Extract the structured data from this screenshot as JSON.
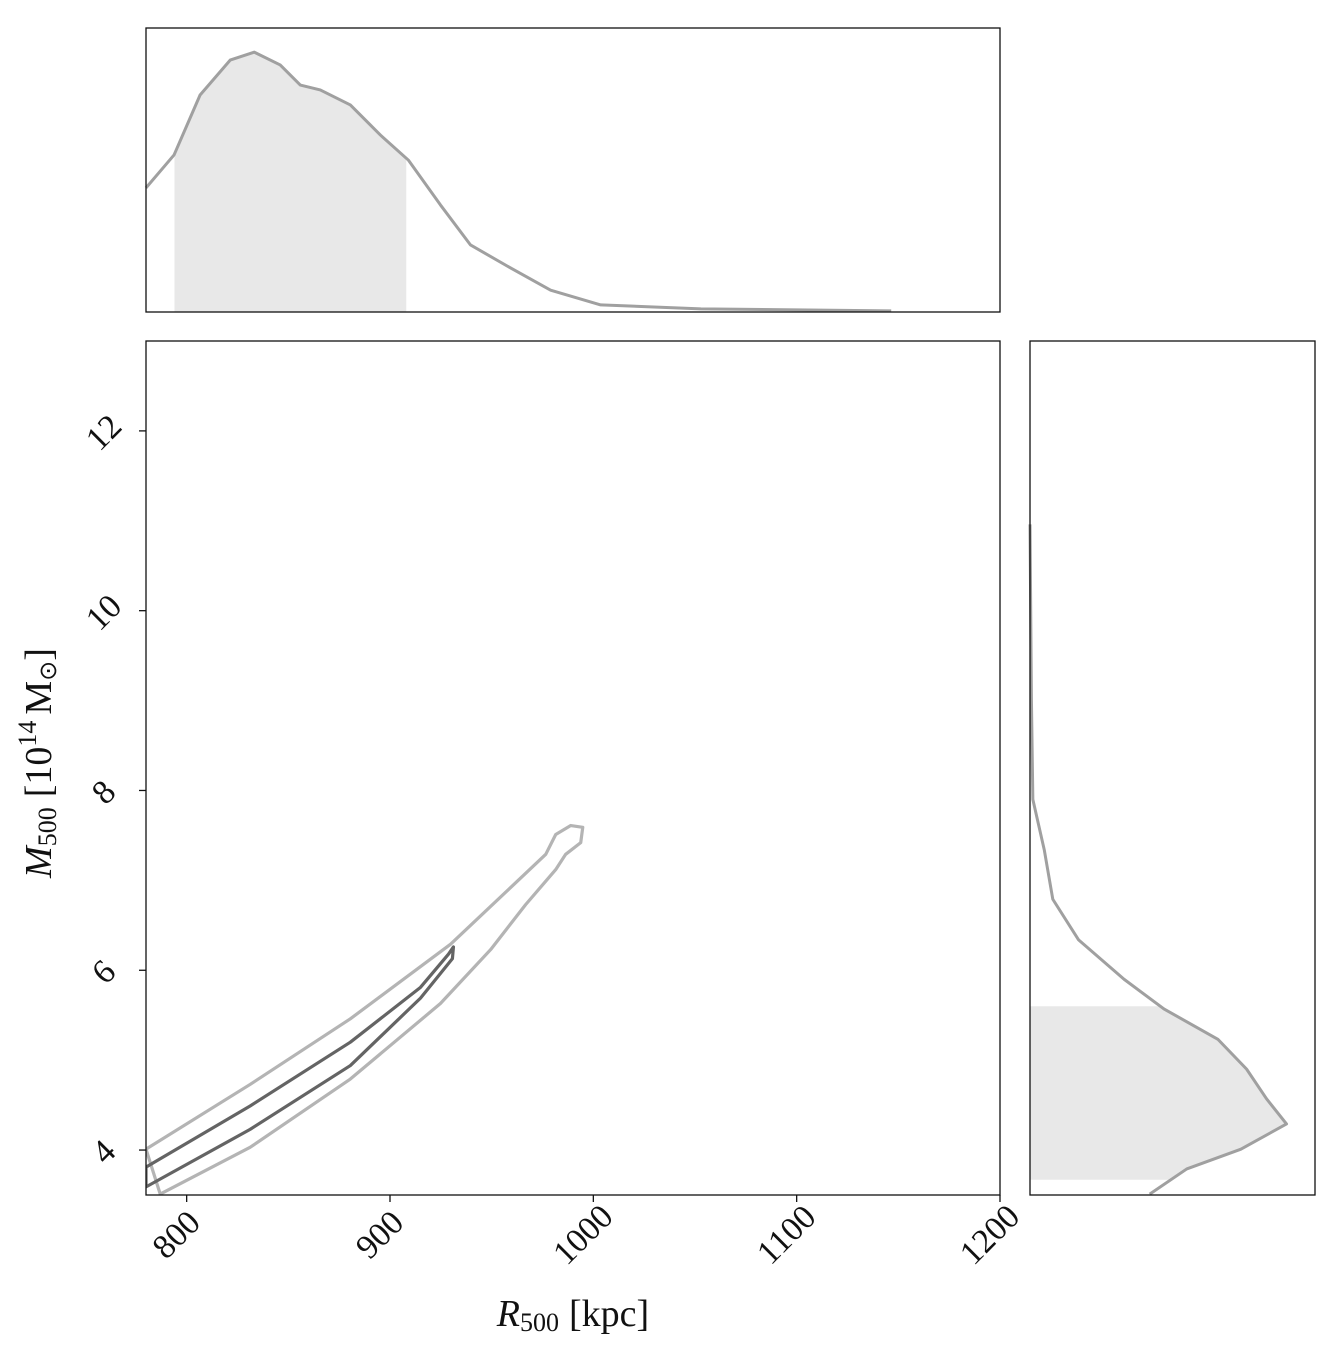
{
  "chart_data": [
    {
      "type": "density",
      "orientation": "vertical",
      "x": [
        780,
        793.8,
        806.6,
        821.4,
        833.2,
        846,
        855.9,
        865.7,
        880.5,
        895.3,
        909,
        924.8,
        939.6,
        959.3,
        979,
        1003.6,
        1052.9,
        1146.5
      ],
      "values": [
        0.437,
        0.553,
        0.764,
        0.887,
        0.915,
        0.87,
        0.799,
        0.782,
        0.729,
        0.623,
        0.535,
        0.377,
        0.236,
        0.155,
        0.077,
        0.025,
        0.011,
        0.004
      ],
      "interval": [
        794,
        908
      ],
      "xlim": [
        780,
        1200
      ],
      "ylim": [
        0,
        1
      ],
      "color": "#a0a0a0",
      "fill": "#e8e8e8"
    },
    {
      "type": "contour",
      "xlim": [
        780,
        1200
      ],
      "ylim": [
        3.5,
        13
      ],
      "xticks": [
        800,
        900,
        1000,
        1100,
        1200
      ],
      "yticks": [
        4,
        6,
        8,
        10,
        12
      ],
      "xlabel": {
        "symbol": "R",
        "sub": "500",
        "unit": "[kpc]"
      },
      "ylabel": {
        "symbol": "M",
        "sub": "500",
        "pre": "[10",
        "sup": "14",
        "unit": "M",
        "unit_sub": "⊙",
        "post": "]"
      },
      "series": [
        {
          "color": "#b4b4b4",
          "x": [
            780,
            831.2,
            880.5,
            929.8,
            959.3,
            976.6,
            981.5,
            988.9,
            994.8,
            993.8,
            986.4,
            981.5,
            966.7,
            949.5,
            924.8,
            880.5,
            831.2,
            787
          ],
          "y": [
            4.01,
            4.73,
            5.46,
            6.29,
            6.92,
            7.29,
            7.51,
            7.61,
            7.59,
            7.42,
            7.29,
            7.12,
            6.73,
            6.23,
            5.63,
            4.79,
            4.03,
            3.51
          ]
        },
        {
          "color": "#646464",
          "x": [
            780,
            831.2,
            880.5,
            915,
            928.8,
            931.2,
            930.7,
            915,
            880.5,
            831.2,
            780
          ],
          "y": [
            3.81,
            4.49,
            5.2,
            5.81,
            6.18,
            6.26,
            6.13,
            5.69,
            4.94,
            4.23,
            3.59
          ]
        }
      ]
    },
    {
      "type": "density",
      "orientation": "horizontal",
      "y": [
        10.96,
        9.01,
        7.9,
        7.34,
        6.79,
        6.34,
        5.9,
        5.57,
        5.23,
        4.9,
        4.57,
        4.29,
        4.01,
        3.79,
        3.51
      ],
      "values": [
        0,
        0.005,
        0.01,
        0.05,
        0.08,
        0.17,
        0.33,
        0.47,
        0.66,
        0.76,
        0.83,
        0.9,
        0.74,
        0.55,
        0.42
      ],
      "interval": [
        3.67,
        5.6
      ],
      "ylim": [
        3.5,
        13
      ],
      "xlim": [
        0,
        1
      ],
      "color": "#a0a0a0",
      "fill": "#e8e8e8"
    }
  ]
}
